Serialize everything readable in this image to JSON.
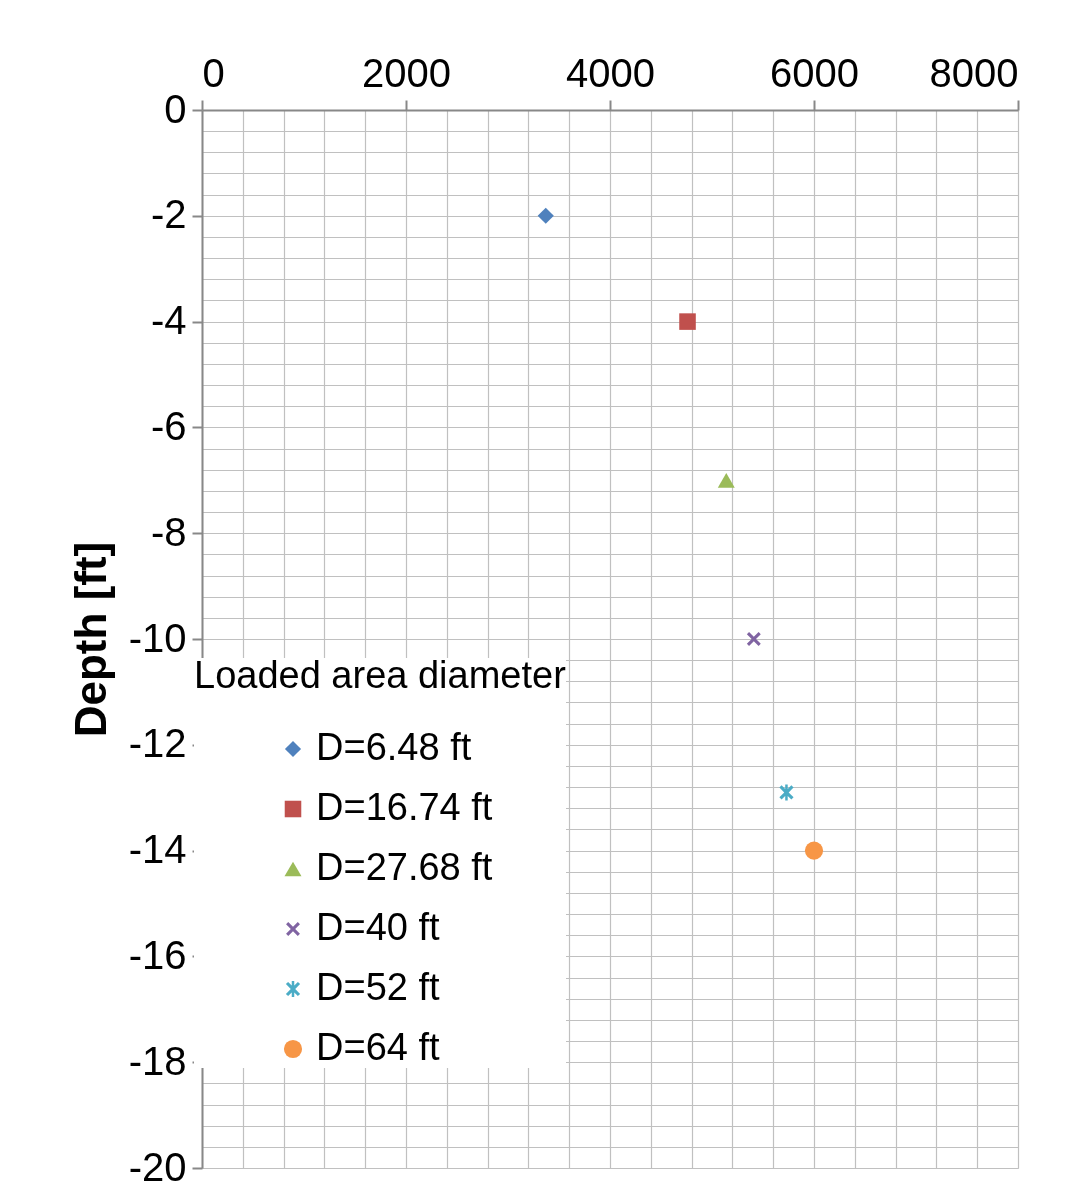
{
  "chart_data": {
    "type": "scatter",
    "ylabel": "Depth [ft]",
    "legend_title": "Loaded area diameter",
    "legend": "bottom left",
    "grid": true,
    "series": [
      {
        "name": "D=6.48 ft",
        "color": "#4f81bd",
        "marker": "diamond",
        "x": [
          3370
        ],
        "values": [
          -2
        ]
      },
      {
        "name": "D=16.74 ft",
        "color": "#c0504d",
        "marker": "square",
        "x": [
          4760
        ],
        "values": [
          -4
        ]
      },
      {
        "name": "D=27.68 ft",
        "color": "#9bbb59",
        "marker": "triangle",
        "x": [
          5140
        ],
        "values": [
          -7
        ]
      },
      {
        "name": "D=40 ft",
        "color": "#8064a2",
        "marker": "cross",
        "x": [
          5410
        ],
        "values": [
          -10
        ]
      },
      {
        "name": "D=52 ft",
        "color": "#4bacc6",
        "marker": "star",
        "x": [
          5730
        ],
        "values": [
          -12.9
        ]
      },
      {
        "name": "D=64 ft",
        "color": "#f79646",
        "marker": "circle",
        "x": [
          6000
        ],
        "values": [
          -14
        ]
      }
    ],
    "xlim": [
      0,
      8000
    ],
    "xticks": [
      0,
      {
        "value": 400,
        "label": null
      },
      {
        "value": 800,
        "label": null
      },
      {
        "value": 1200,
        "label": null
      },
      {
        "value": 1600,
        "label": null
      },
      2000,
      {
        "value": 2400,
        "label": null
      },
      {
        "value": 2800,
        "label": null
      },
      {
        "value": 3200,
        "label": null
      },
      {
        "value": 3600,
        "label": null
      },
      4000,
      {
        "value": 4400,
        "label": null
      },
      {
        "value": 4800,
        "label": null
      },
      {
        "value": 5200,
        "label": null
      },
      {
        "value": 5600,
        "label": null
      },
      6000,
      {
        "value": 6400,
        "label": null
      },
      {
        "value": 6800,
        "label": null
      },
      {
        "value": 7200,
        "label": null
      },
      {
        "value": 7600,
        "label": null
      },
      8000
    ],
    "ylim": [
      -20,
      0
    ],
    "yticks": [
      0,
      {
        "value": -0.4,
        "label": null
      },
      {
        "value": -0.8,
        "label": null
      },
      {
        "value": -1.2,
        "label": null
      },
      {
        "value": -1.6,
        "label": null
      },
      -2,
      {
        "value": -2.4,
        "label": null
      },
      {
        "value": -2.8,
        "label": null
      },
      {
        "value": -3.2,
        "label": null
      },
      {
        "value": -3.6,
        "label": null
      },
      -4,
      {
        "value": -4.4,
        "label": null
      },
      {
        "value": -4.8,
        "label": null
      },
      {
        "value": -5.2,
        "label": null
      },
      {
        "value": -5.6,
        "label": null
      },
      -6,
      {
        "value": -6.4,
        "label": null
      },
      {
        "value": -6.8,
        "label": null
      },
      {
        "value": -7.2,
        "label": null
      },
      {
        "value": -7.6,
        "label": null
      },
      -8,
      {
        "value": -8.4,
        "label": null
      },
      {
        "value": -8.8,
        "label": null
      },
      {
        "value": -9.2,
        "label": null
      },
      {
        "value": -9.6,
        "label": null
      },
      -10,
      {
        "value": -10.4,
        "label": null
      },
      {
        "value": -10.8,
        "label": null
      },
      {
        "value": -11.2,
        "label": null
      },
      {
        "value": -11.6,
        "label": null
      },
      -12,
      {
        "value": -12.4,
        "label": null
      },
      {
        "value": -12.8,
        "label": null
      },
      {
        "value": -13.2,
        "label": null
      },
      {
        "value": -13.6,
        "label": null
      },
      -14,
      {
        "value": -14.4,
        "label": null
      },
      {
        "value": -14.8,
        "label": null
      },
      {
        "value": -15.2,
        "label": null
      },
      {
        "value": -15.6,
        "label": null
      },
      -16,
      {
        "value": -16.4,
        "label": null
      },
      {
        "value": -16.8,
        "label": null
      },
      {
        "value": -17.2,
        "label": null
      },
      {
        "value": -17.6,
        "label": null
      },
      -18,
      {
        "value": -18.4,
        "label": null
      },
      {
        "value": -18.8,
        "label": null
      },
      {
        "value": -19.2,
        "label": null
      },
      {
        "value": -19.6,
        "label": null
      },
      -20
    ]
  }
}
